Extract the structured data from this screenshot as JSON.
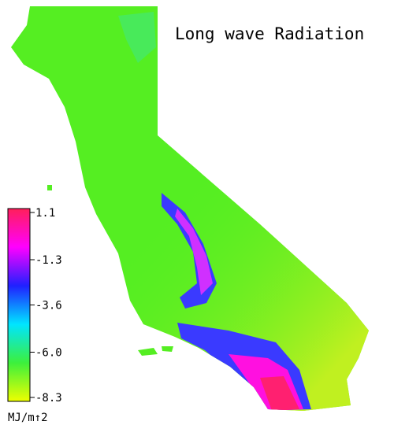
{
  "title": "Long wave Radiation",
  "colorbar": {
    "ticks": [
      1.1,
      -1.3,
      -3.6,
      {
        "value": -6,
        "label": "-6.0"
      },
      -8.3
    ],
    "colors": [
      "#ff1f5a",
      "#ff00ff",
      "#2020ff",
      "#00e5ff",
      "#3cf03c",
      "#eeff00"
    ],
    "unit": "MJ/m↑2"
  }
}
